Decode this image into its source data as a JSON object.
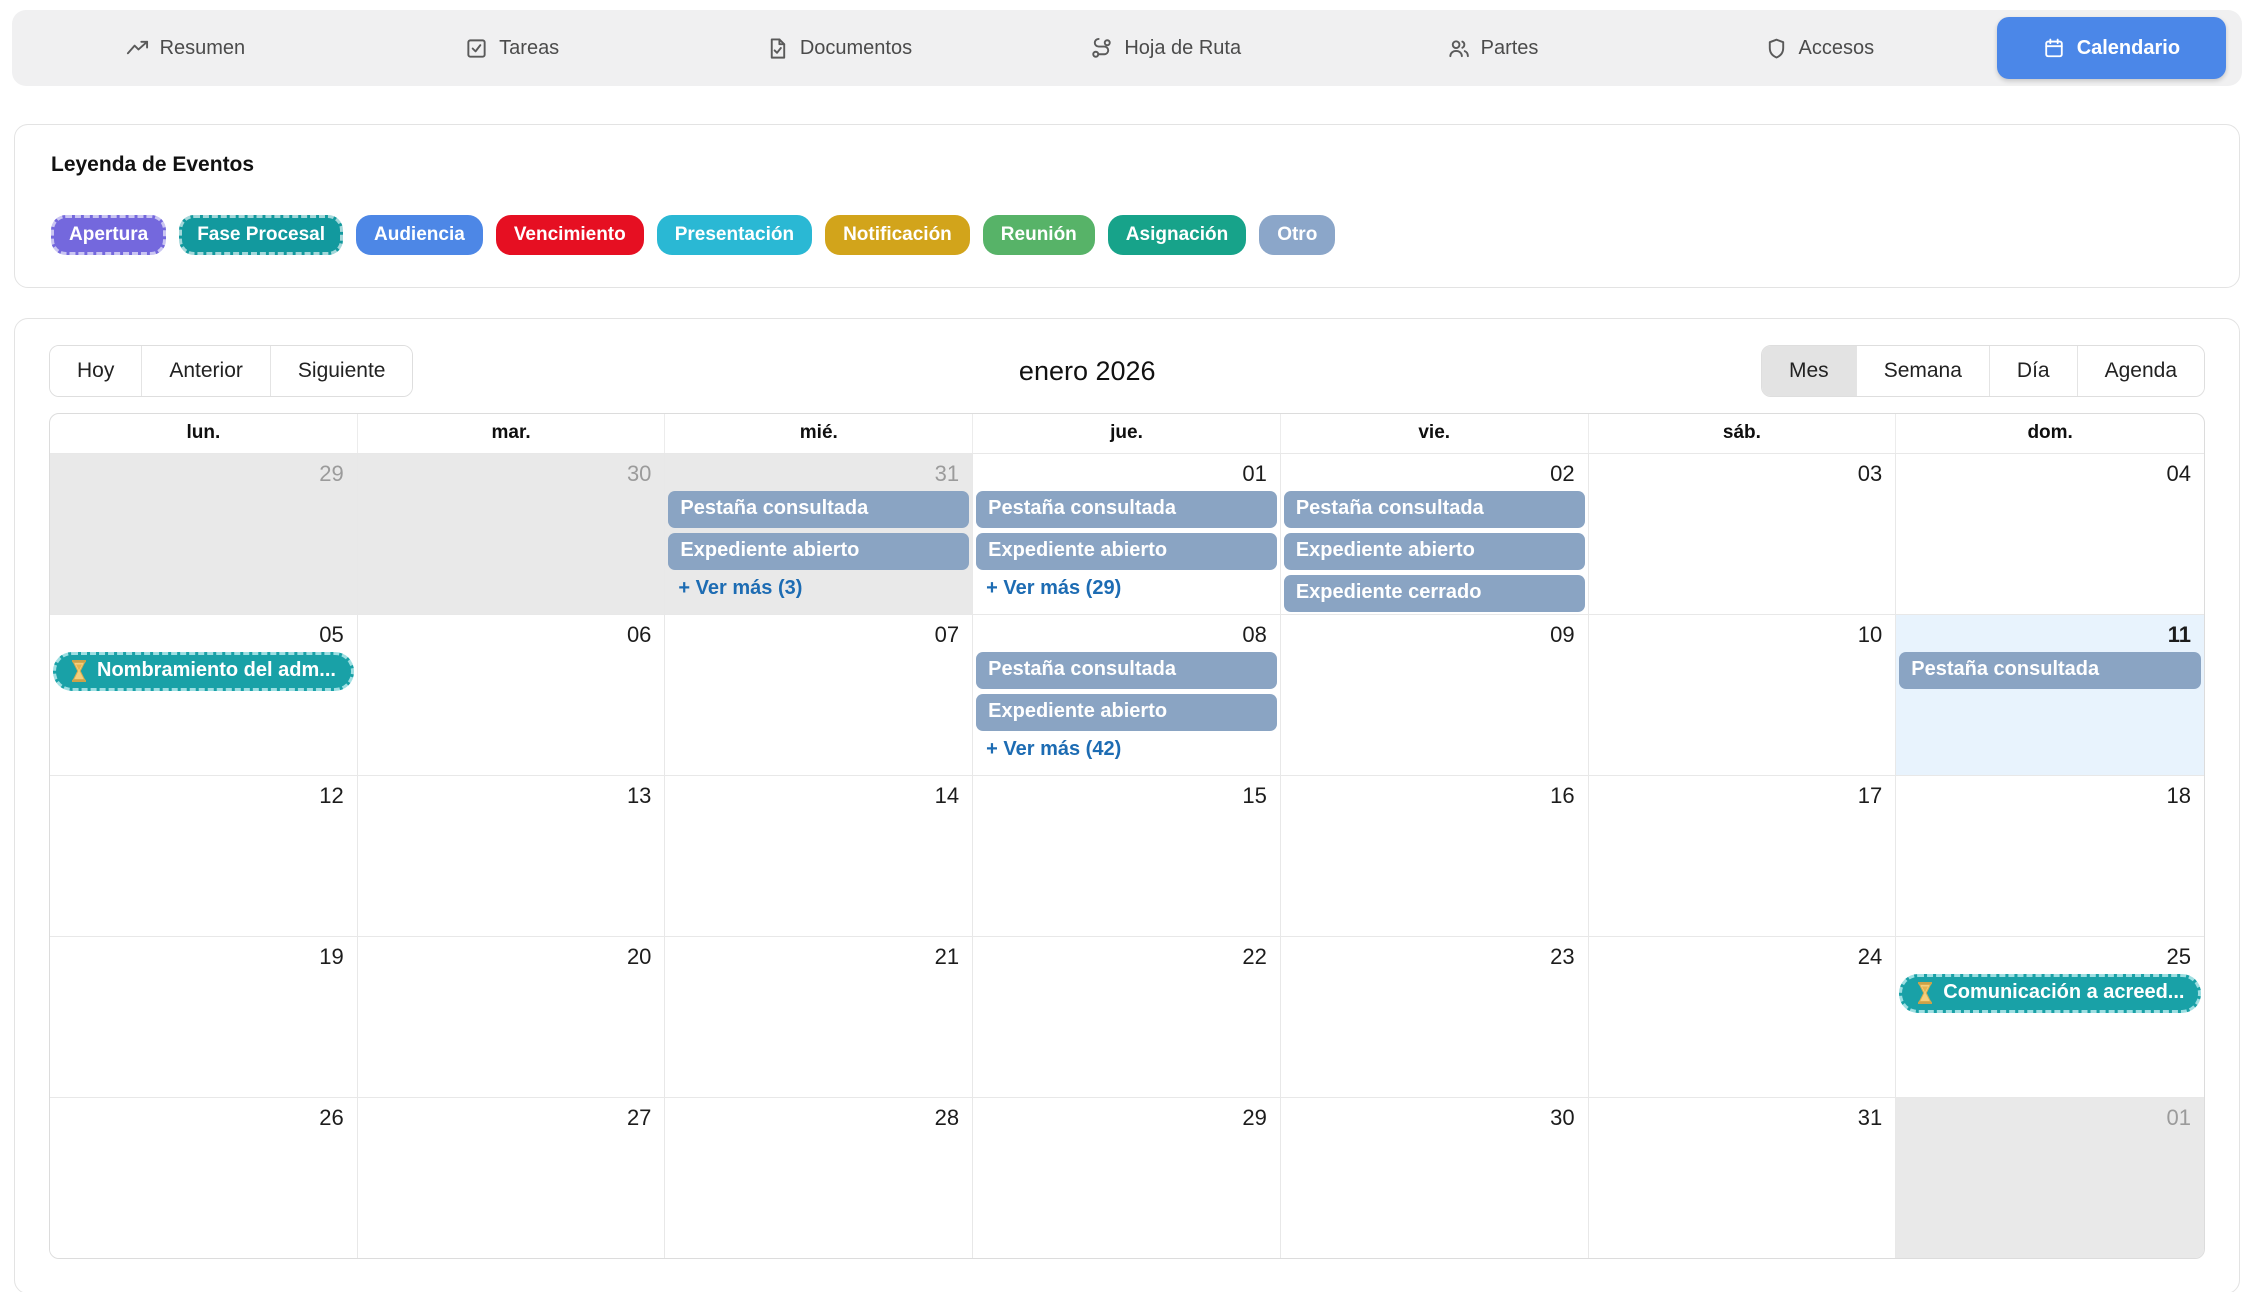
{
  "nav": {
    "tabs": [
      {
        "label": "Resumen",
        "icon": "trending-up-icon"
      },
      {
        "label": "Tareas",
        "icon": "check-square-icon"
      },
      {
        "label": "Documentos",
        "icon": "file-check-icon"
      },
      {
        "label": "Hoja de Ruta",
        "icon": "route-icon"
      },
      {
        "label": "Partes",
        "icon": "users-icon"
      },
      {
        "label": "Accesos",
        "icon": "shield-icon"
      }
    ],
    "active_tab": {
      "label": "Calendario",
      "icon": "calendar-icon",
      "color": "#4b87e8"
    }
  },
  "legend": {
    "title": "Leyenda de Eventos",
    "items": [
      {
        "label": "Apertura",
        "color": "#7468dd",
        "dashed": true
      },
      {
        "label": "Fase Procesal",
        "color": "#12999e",
        "dashed": true
      },
      {
        "label": "Audiencia",
        "color": "#4d87e6",
        "dashed": false
      },
      {
        "label": "Vencimiento",
        "color": "#e60f22",
        "dashed": false
      },
      {
        "label": "Presentación",
        "color": "#2ab8d4",
        "dashed": false
      },
      {
        "label": "Notificación",
        "color": "#d2a41b",
        "dashed": false
      },
      {
        "label": "Reunión",
        "color": "#57b368",
        "dashed": false
      },
      {
        "label": "Asignación",
        "color": "#17a38a",
        "dashed": false
      },
      {
        "label": "Otro",
        "color": "#8ba6c9",
        "dashed": false
      }
    ]
  },
  "calendar": {
    "toolbar": {
      "today_label": "Hoy",
      "prev_label": "Anterior",
      "next_label": "Siguiente",
      "title": "enero 2026",
      "views": [
        "Mes",
        "Semana",
        "Día",
        "Agenda"
      ],
      "active_view": "Mes"
    },
    "day_headers": [
      "lun.",
      "mar.",
      "mié.",
      "jue.",
      "vie.",
      "sáb.",
      "dom."
    ],
    "weeks": [
      [
        {
          "day": "29",
          "other": true
        },
        {
          "day": "30",
          "other": true
        },
        {
          "day": "31",
          "other": true,
          "events": [
            {
              "type": "info",
              "label": "Pestaña consultada"
            },
            {
              "type": "info",
              "label": "Expediente abierto"
            }
          ],
          "more": "+ Ver más (3)"
        },
        {
          "day": "01",
          "events": [
            {
              "type": "info",
              "label": "Pestaña consultada"
            },
            {
              "type": "info",
              "label": "Expediente abierto"
            }
          ],
          "more": "+ Ver más (29)"
        },
        {
          "day": "02",
          "events": [
            {
              "type": "info",
              "label": "Pestaña consultada"
            },
            {
              "type": "info",
              "label": "Expediente abierto"
            },
            {
              "type": "info",
              "label": "Expediente cerrado"
            }
          ]
        },
        {
          "day": "03"
        },
        {
          "day": "04"
        }
      ],
      [
        {
          "day": "05",
          "events": [
            {
              "type": "phase",
              "label": "Nombramiento del adm...",
              "icon": "hourglass-icon"
            }
          ]
        },
        {
          "day": "06"
        },
        {
          "day": "07"
        },
        {
          "day": "08",
          "events": [
            {
              "type": "info",
              "label": "Pestaña consultada"
            },
            {
              "type": "info",
              "label": "Expediente abierto"
            }
          ],
          "more": "+ Ver más (42)"
        },
        {
          "day": "09"
        },
        {
          "day": "10"
        },
        {
          "day": "11",
          "today": true,
          "events": [
            {
              "type": "info",
              "label": "Pestaña consultada"
            }
          ]
        }
      ],
      [
        {
          "day": "12"
        },
        {
          "day": "13"
        },
        {
          "day": "14"
        },
        {
          "day": "15"
        },
        {
          "day": "16"
        },
        {
          "day": "17"
        },
        {
          "day": "18"
        }
      ],
      [
        {
          "day": "19"
        },
        {
          "day": "20"
        },
        {
          "day": "21"
        },
        {
          "day": "22"
        },
        {
          "day": "23"
        },
        {
          "day": "24"
        },
        {
          "day": "25",
          "events": [
            {
              "type": "phase",
              "label": "Comunicación a acreed...",
              "icon": "hourglass-icon"
            }
          ]
        }
      ],
      [
        {
          "day": "26"
        },
        {
          "day": "27"
        },
        {
          "day": "28"
        },
        {
          "day": "29"
        },
        {
          "day": "30"
        },
        {
          "day": "31"
        },
        {
          "day": "01",
          "other": true
        }
      ]
    ]
  },
  "colors": {
    "nav_bg": "#f0f0f1",
    "active_button": "#4b87e8",
    "event_info": "#8aa4c3",
    "event_phase": "#19a1a7",
    "event_phase_border": "#9edfe2",
    "more_link": "#1d6cb3",
    "other_month_bg": "#e9e9e9",
    "today_bg": "#e8f3fd"
  }
}
